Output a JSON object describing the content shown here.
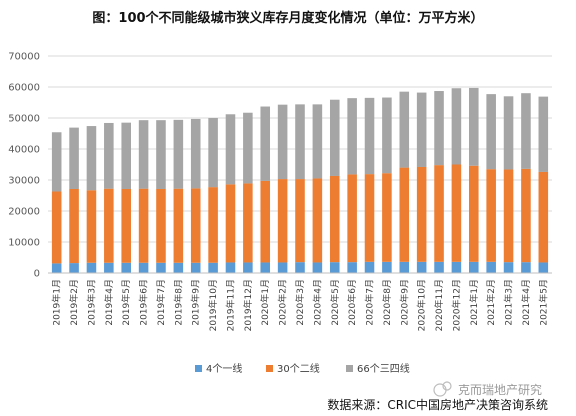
{
  "chart_data": {
    "type": "bar",
    "stacked": true,
    "title": "图：100个不同能级城市狭义库存月度变化情况（单位：万平方米）",
    "xlabel": "",
    "ylabel": "",
    "ylim": [
      0,
      70000
    ],
    "yticks": [
      "0",
      "10000",
      "20000",
      "30000",
      "40000",
      "50000",
      "60000",
      "70000"
    ],
    "grid": true,
    "legend_position": "bottom",
    "categories": [
      "2019年1月",
      "2019年2月",
      "2019年3月",
      "2019年4月",
      "2019年5月",
      "2019年6月",
      "2019年7月",
      "2019年8月",
      "2019年9月",
      "2019年10月",
      "2019年11月",
      "2019年12月",
      "2020年1月",
      "2020年2月",
      "2020年3月",
      "2020年4月",
      "2020年5月",
      "2020年6月",
      "2020年7月",
      "2020年8月",
      "2020年9月",
      "2020年10月",
      "2020年11月",
      "2020年12月",
      "2021年1月",
      "2021年2月",
      "2021年3月",
      "2021年4月",
      "2021年5月"
    ],
    "series": [
      {
        "name": "4个一线",
        "color": "#5B9BD5",
        "values": [
          3100,
          3200,
          3300,
          3300,
          3300,
          3300,
          3300,
          3300,
          3300,
          3300,
          3400,
          3400,
          3400,
          3400,
          3500,
          3400,
          3500,
          3500,
          3600,
          3600,
          3600,
          3600,
          3600,
          3600,
          3600,
          3600,
          3500,
          3500,
          3400
        ]
      },
      {
        "name": "30个二线",
        "color": "#ED7D31",
        "values": [
          23200,
          23900,
          23400,
          23900,
          23800,
          23900,
          23800,
          23900,
          24000,
          24400,
          25200,
          25500,
          26300,
          26900,
          26800,
          27100,
          27800,
          28300,
          28300,
          28600,
          30400,
          30600,
          31200,
          31400,
          31000,
          29900,
          29900,
          30100,
          29200
        ]
      },
      {
        "name": "66个三四线",
        "color": "#A5A5A5",
        "values": [
          19100,
          19800,
          20700,
          21200,
          21400,
          22100,
          22200,
          22200,
          22400,
          22300,
          22600,
          22800,
          24000,
          24000,
          24100,
          23900,
          24600,
          24600,
          24600,
          24400,
          24500,
          24000,
          23900,
          24600,
          25100,
          24200,
          23600,
          24400,
          24300
        ]
      }
    ]
  },
  "footer": {
    "source": "数据来源：CRIC中国房地产决策咨询系统",
    "watermark": "克而瑞地产研究"
  }
}
